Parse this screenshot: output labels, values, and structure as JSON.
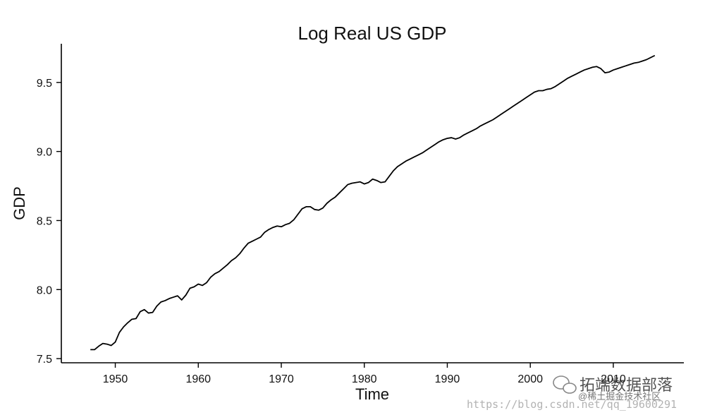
{
  "chart_data": {
    "type": "line",
    "title": "Log Real US GDP",
    "xlabel": "Time",
    "ylabel": "GDP",
    "xlim": [
      1943.5,
      2018.5
    ],
    "ylim": [
      7.47,
      9.78
    ],
    "x_ticks": [
      1950,
      1960,
      1970,
      1980,
      1990,
      2000,
      2010
    ],
    "y_ticks": [
      7.5,
      8.0,
      8.5,
      9.0,
      9.5
    ],
    "y_tick_labels": [
      "7.5",
      "8.0",
      "8.5",
      "9.0",
      "9.5"
    ],
    "grid": false,
    "series": [
      {
        "color": "#000000",
        "x": [
          1947.0,
          1947.5,
          1948.0,
          1948.5,
          1949.0,
          1949.5,
          1950.0,
          1950.5,
          1951.0,
          1951.5,
          1952.0,
          1952.5,
          1953.0,
          1953.5,
          1954.0,
          1954.5,
          1955.0,
          1955.5,
          1956.0,
          1956.5,
          1957.0,
          1957.5,
          1958.0,
          1958.5,
          1959.0,
          1959.5,
          1960.0,
          1960.5,
          1961.0,
          1961.5,
          1962.0,
          1962.5,
          1963.0,
          1963.5,
          1964.0,
          1964.5,
          1965.0,
          1965.5,
          1966.0,
          1966.5,
          1967.0,
          1967.5,
          1968.0,
          1968.5,
          1969.0,
          1969.5,
          1970.0,
          1970.5,
          1971.0,
          1971.5,
          1972.0,
          1972.5,
          1973.0,
          1973.5,
          1974.0,
          1974.5,
          1975.0,
          1975.5,
          1976.0,
          1976.5,
          1977.0,
          1977.5,
          1978.0,
          1978.5,
          1979.0,
          1979.5,
          1980.0,
          1980.5,
          1981.0,
          1981.5,
          1982.0,
          1982.5,
          1983.0,
          1983.5,
          1984.0,
          1984.5,
          1985.0,
          1985.5,
          1986.0,
          1986.5,
          1987.0,
          1987.5,
          1988.0,
          1988.5,
          1989.0,
          1989.5,
          1990.0,
          1990.5,
          1991.0,
          1991.5,
          1992.0,
          1992.5,
          1993.0,
          1993.5,
          1994.0,
          1994.5,
          1995.0,
          1995.5,
          1996.0,
          1996.5,
          1997.0,
          1997.5,
          1998.0,
          1998.5,
          1999.0,
          1999.5,
          2000.0,
          2000.5,
          2001.0,
          2001.5,
          2002.0,
          2002.5,
          2003.0,
          2003.5,
          2004.0,
          2004.5,
          2005.0,
          2005.5,
          2006.0,
          2006.5,
          2007.0,
          2007.5,
          2008.0,
          2008.5,
          2009.0,
          2009.5,
          2010.0,
          2010.5,
          2011.0,
          2011.5,
          2012.0,
          2012.5,
          2013.0,
          2013.5,
          2014.0,
          2014.5,
          2015.0
        ],
        "values": [
          7.565,
          7.565,
          7.59,
          7.61,
          7.605,
          7.595,
          7.62,
          7.69,
          7.73,
          7.76,
          7.785,
          7.79,
          7.84,
          7.855,
          7.83,
          7.835,
          7.88,
          7.91,
          7.92,
          7.935,
          7.945,
          7.955,
          7.925,
          7.96,
          8.01,
          8.02,
          8.04,
          8.03,
          8.05,
          8.09,
          8.115,
          8.13,
          8.155,
          8.18,
          8.21,
          8.23,
          8.26,
          8.3,
          8.335,
          8.35,
          8.365,
          8.38,
          8.415,
          8.435,
          8.45,
          8.46,
          8.455,
          8.47,
          8.48,
          8.505,
          8.545,
          8.585,
          8.6,
          8.6,
          8.58,
          8.575,
          8.59,
          8.625,
          8.65,
          8.67,
          8.7,
          8.73,
          8.76,
          8.77,
          8.775,
          8.78,
          8.765,
          8.775,
          8.8,
          8.79,
          8.775,
          8.78,
          8.82,
          8.86,
          8.89,
          8.91,
          8.93,
          8.945,
          8.96,
          8.975,
          8.99,
          9.01,
          9.03,
          9.05,
          9.07,
          9.085,
          9.095,
          9.1,
          9.09,
          9.1,
          9.12,
          9.135,
          9.15,
          9.165,
          9.185,
          9.2,
          9.215,
          9.23,
          9.25,
          9.27,
          9.29,
          9.31,
          9.33,
          9.35,
          9.37,
          9.39,
          9.41,
          9.43,
          9.44,
          9.44,
          9.45,
          9.455,
          9.47,
          9.49,
          9.51,
          9.53,
          9.545,
          9.56,
          9.575,
          9.59,
          9.6,
          9.61,
          9.615,
          9.6,
          9.57,
          9.575,
          9.59,
          9.6,
          9.61,
          9.62,
          9.63,
          9.64,
          9.645,
          9.655,
          9.665,
          9.68,
          9.695
        ]
      }
    ]
  },
  "watermark": {
    "brand": "拓端数据部落",
    "sub": "@稀土掘金技术社区",
    "url": "https://blog.csdn.net/qq_19600291"
  }
}
